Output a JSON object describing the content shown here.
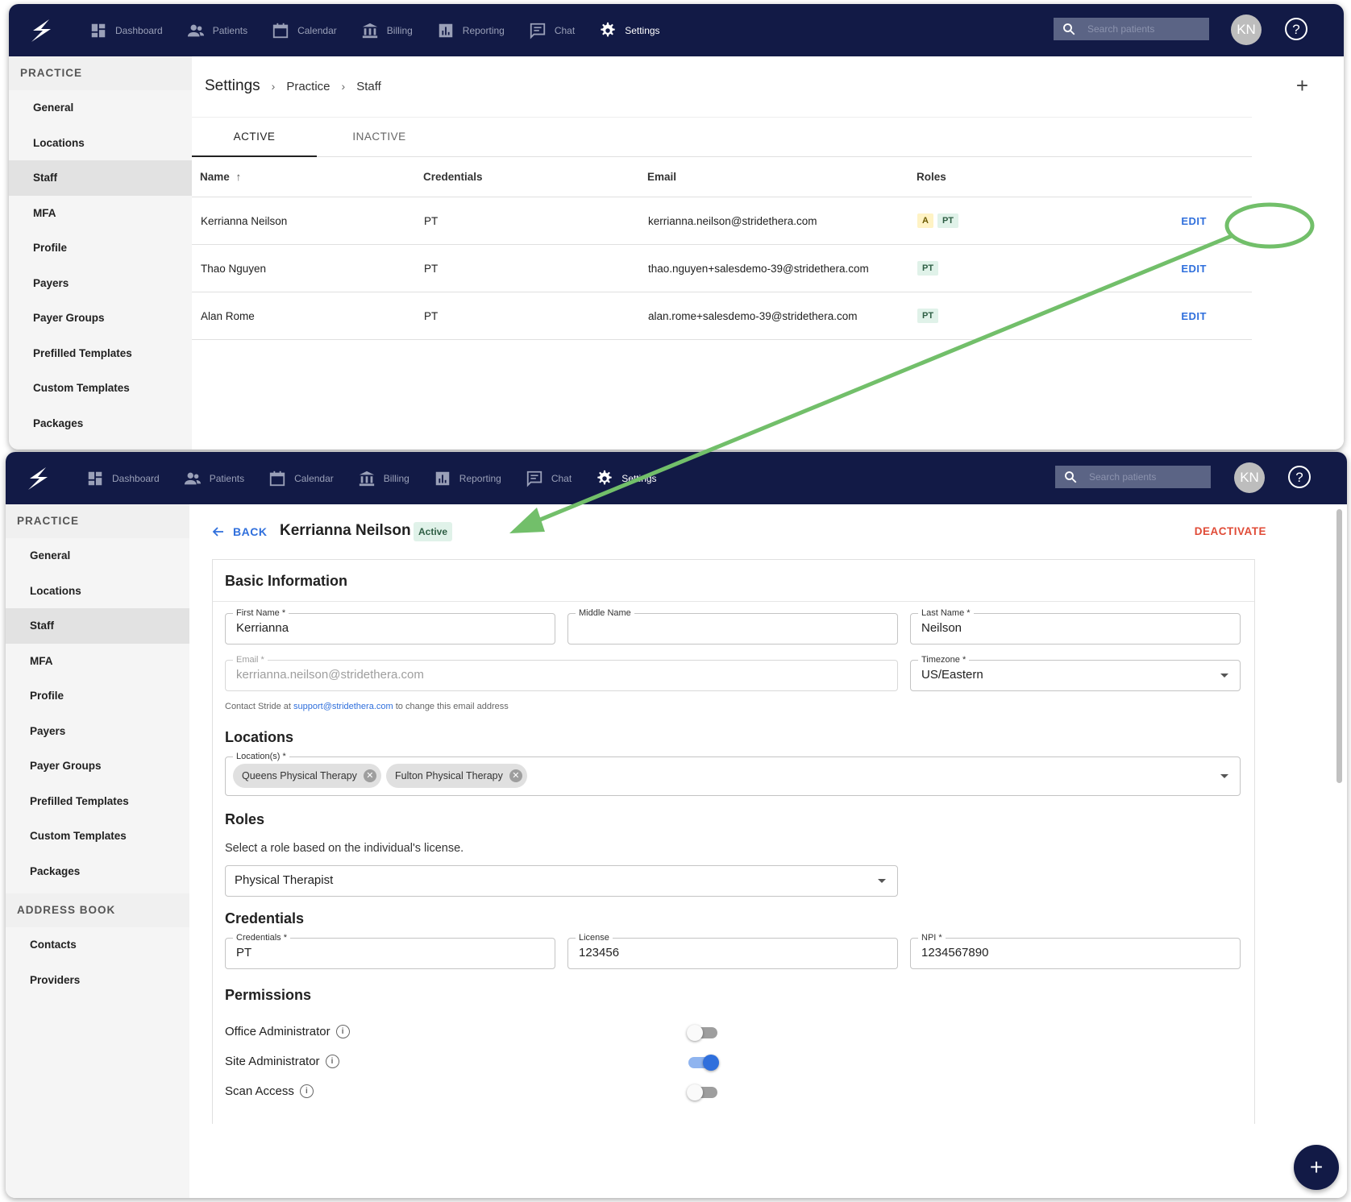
{
  "nav": {
    "items": [
      {
        "label": "Dashboard",
        "icon": "dashboard-icon"
      },
      {
        "label": "Patients",
        "icon": "patients-icon"
      },
      {
        "label": "Calendar",
        "icon": "calendar-icon"
      },
      {
        "label": "Billing",
        "icon": "billing-icon"
      },
      {
        "label": "Reporting",
        "icon": "reporting-icon"
      },
      {
        "label": "Chat",
        "icon": "chat-icon"
      },
      {
        "label": "Settings",
        "icon": "gear-icon"
      }
    ],
    "search_placeholder": "Search patients",
    "avatar_initials": "KN"
  },
  "sidebar": {
    "practice_header": "PRACTICE",
    "practice_items": [
      "General",
      "Locations",
      "Staff",
      "MFA",
      "Profile",
      "Payers",
      "Payer Groups",
      "Prefilled Templates",
      "Custom Templates",
      "Packages"
    ],
    "address_book_header": "ADDRESS BOOK",
    "address_book_items": [
      "Contacts",
      "Providers"
    ],
    "selected": "Staff"
  },
  "staff_list": {
    "breadcrumb": [
      "Settings",
      "Practice",
      "Staff"
    ],
    "tabs": [
      "ACTIVE",
      "INACTIVE"
    ],
    "columns": [
      "Name",
      "Credentials",
      "Email",
      "Roles"
    ],
    "rows": [
      {
        "name": "Kerrianna Neilson",
        "credentials": "PT",
        "email": "kerrianna.neilson@stridethera.com",
        "roles": [
          "A",
          "PT"
        ],
        "action": "EDIT"
      },
      {
        "name": "Thao Nguyen",
        "credentials": "PT",
        "email": "thao.nguyen+salesdemo-39@stridethera.com",
        "roles": [
          "PT"
        ],
        "action": "EDIT"
      },
      {
        "name": "Alan Rome",
        "credentials": "PT",
        "email": "alan.rome+salesdemo-39@stridethera.com",
        "roles": [
          "PT"
        ],
        "action": "EDIT"
      }
    ]
  },
  "edit": {
    "back_label": "BACK",
    "name": "Kerrianna Neilson",
    "status": "Active",
    "deactivate_label": "DEACTIVATE",
    "basic_info_title": "Basic Information",
    "first_name": {
      "label": "First Name *",
      "value": "Kerrianna"
    },
    "middle_name": {
      "label": "Middle Name",
      "value": ""
    },
    "last_name": {
      "label": "Last Name *",
      "value": "Neilson"
    },
    "email": {
      "label": "Email *",
      "value": "kerrianna.neilson@stridethera.com"
    },
    "timezone": {
      "label": "Timezone *",
      "value": "US/Eastern"
    },
    "email_helper_prefix": "Contact Stride at",
    "email_helper_link": "support@stridethera.com",
    "email_helper_suffix": "to change this email address",
    "locations_title": "Locations",
    "locations_label": "Location(s) *",
    "locations": [
      "Queens Physical Therapy",
      "Fulton Physical Therapy"
    ],
    "roles_title": "Roles",
    "roles_help": "Select a role based on the individual's license.",
    "role_value": "Physical Therapist",
    "credentials_title": "Credentials",
    "credentials": {
      "label": "Credentials *",
      "value": "PT"
    },
    "license": {
      "label": "License",
      "value": "123456"
    },
    "npi": {
      "label": "NPI *",
      "value": "1234567890"
    },
    "permissions_title": "Permissions",
    "permissions": [
      {
        "label": "Office Administrator",
        "enabled": false
      },
      {
        "label": "Site Administrator",
        "enabled": true
      },
      {
        "label": "Scan Access",
        "enabled": false
      }
    ]
  },
  "colors": {
    "navbar": "#121a46",
    "link": "#2f6fdc",
    "danger": "#e04b37",
    "annotation": "#72bf6a"
  }
}
